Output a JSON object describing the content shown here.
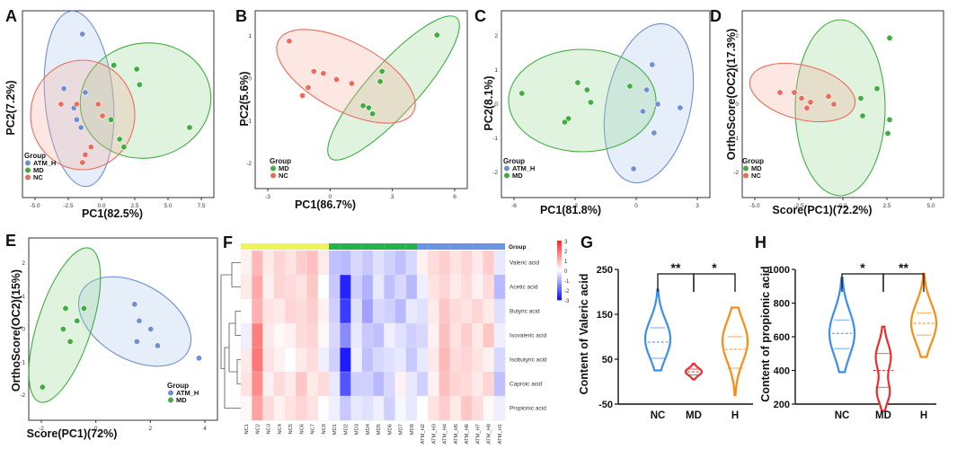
{
  "colors": {
    "ATM_H": "#6f8fd6",
    "MD": "#3fae3f",
    "NC": "#ee6a5a",
    "MD_fill": "rgba(150,215,150,0.30)",
    "NC_fill": "rgba(245,175,160,0.30)",
    "ATM_fill": "rgba(170,200,235,0.30)",
    "violin_NC": "#3b8ef0",
    "violin_MD": "#ee2b2b",
    "violin_H": "#ff8a10"
  },
  "chart_data": [
    {
      "id": "A",
      "type": "scatter",
      "panel_label": "A",
      "xlabel": "PC1(82.5%)",
      "ylabel": "PC2(7.2%)",
      "xticks": [
        "-5.0",
        "-2.5",
        "0.0",
        "2.5",
        "5.0",
        "7.5"
      ],
      "legend_title": "Group",
      "legend": [
        "ATM_H",
        "MD",
        "NC"
      ],
      "series": [
        {
          "name": "ATM_H",
          "points": [
            [
              -1.4,
              1.8
            ],
            [
              -2.7,
              0.4
            ],
            [
              -2.0,
              -0.1
            ],
            [
              -1.2,
              0.3
            ],
            [
              -1.8,
              -0.4
            ],
            [
              -1.5,
              -0.6
            ]
          ]
        },
        {
          "name": "MD",
          "points": [
            [
              0.8,
              1.0
            ],
            [
              2.4,
              0.9
            ],
            [
              2.6,
              0.5
            ],
            [
              6.1,
              -0.6
            ],
            [
              0.6,
              -0.4
            ],
            [
              1.2,
              -0.9
            ],
            [
              1.5,
              -1.1
            ]
          ]
        },
        {
          "name": "NC",
          "points": [
            [
              -2.9,
              0.0
            ],
            [
              -1.8,
              0.0
            ],
            [
              -0.3,
              0.0
            ],
            [
              0.0,
              -0.3
            ],
            [
              -0.8,
              -1.1
            ],
            [
              -1.2,
              -1.3
            ],
            [
              -1.4,
              -1.5
            ]
          ]
        }
      ]
    },
    {
      "id": "B",
      "type": "scatter",
      "panel_label": "B",
      "xlabel": "PC1(86.7%)",
      "ylabel": "PC2(5.6%)",
      "xticks": [
        "-3",
        "0",
        "3",
        "6"
      ],
      "yticks": [
        "1",
        "0",
        "-1",
        "-2"
      ],
      "legend_title": "Group",
      "legend": [
        "MD",
        "NC"
      ],
      "series": [
        {
          "name": "MD",
          "points": [
            [
              5.0,
              1.2
            ],
            [
              2.1,
              0.3
            ],
            [
              2.0,
              0.05
            ],
            [
              1.1,
              -0.55
            ],
            [
              1.4,
              -0.6
            ],
            [
              1.6,
              -0.75
            ]
          ]
        },
        {
          "name": "NC",
          "points": [
            [
              -2.8,
              1.05
            ],
            [
              -1.5,
              0.3
            ],
            [
              -1.0,
              0.25
            ],
            [
              -0.3,
              0.1
            ],
            [
              0.5,
              0.0
            ],
            [
              -1.8,
              -0.1
            ],
            [
              -2.1,
              -0.3
            ]
          ]
        }
      ]
    },
    {
      "id": "C",
      "type": "scatter",
      "panel_label": "C",
      "xlabel": "PC1(81.8%)",
      "ylabel": "PC2(8.1%)",
      "xticks": [
        "-6",
        "-3",
        "0",
        "3"
      ],
      "yticks": [
        "2",
        "1",
        "0",
        "-1",
        "-2"
      ],
      "legend_title": "Group",
      "legend": [
        "ATM_H",
        "MD"
      ],
      "series": [
        {
          "name": "ATM_H",
          "points": [
            [
              1.5,
              1.1
            ],
            [
              1.2,
              0.4
            ],
            [
              1.8,
              0.0
            ],
            [
              3.0,
              -0.1
            ],
            [
              1.0,
              -0.2
            ],
            [
              1.6,
              -0.8
            ],
            [
              0.5,
              -1.8
            ]
          ]
        },
        {
          "name": "MD",
          "points": [
            [
              -5.5,
              0.3
            ],
            [
              -2.5,
              0.6
            ],
            [
              -2.0,
              0.4
            ],
            [
              -1.8,
              0.05
            ],
            [
              -3.0,
              -0.4
            ],
            [
              -3.2,
              -0.5
            ],
            [
              0.3,
              0.5
            ]
          ]
        }
      ]
    },
    {
      "id": "D",
      "type": "scatter",
      "panel_label": "D",
      "xlabel": "Score(PC1)(72.2%)",
      "ylabel": "OrthoScore(OC2)(17.3%)",
      "xticks": [
        "-5.0",
        "-2.5",
        "0.0",
        "2.5",
        "5.0"
      ],
      "yticks": [
        "2",
        "1",
        "0",
        "-1",
        "-2"
      ],
      "legend_title": "Group",
      "legend": [
        "MD",
        "NC"
      ],
      "series": [
        {
          "name": "MD",
          "points": [
            [
              2.6,
              1.7
            ],
            [
              1.9,
              0.4
            ],
            [
              1.0,
              0.15
            ],
            [
              1.1,
              -0.3
            ],
            [
              2.6,
              -0.4
            ],
            [
              2.5,
              -0.75
            ]
          ]
        },
        {
          "name": "NC",
          "points": [
            [
              -3.5,
              0.3
            ],
            [
              -2.7,
              0.3
            ],
            [
              -2.3,
              0.15
            ],
            [
              -1.8,
              0.05
            ],
            [
              -2.0,
              -0.1
            ],
            [
              -0.8,
              0.2
            ],
            [
              -0.5,
              0.0
            ]
          ]
        }
      ]
    },
    {
      "id": "E",
      "type": "scatter",
      "panel_label": "E",
      "xlabel": "Score(PC1)(72%)",
      "ylabel": "OrthoScore(OC2)(15%)",
      "xticks": [
        "-2",
        "0",
        "2",
        "4"
      ],
      "yticks": [
        "2",
        "1",
        "0",
        "-1",
        "-2"
      ],
      "legend_title": "Group",
      "legend": [
        "ATM_H",
        "MD"
      ],
      "series": [
        {
          "name": "ATM_H",
          "points": [
            [
              1.0,
              0.6
            ],
            [
              1.2,
              0.2
            ],
            [
              1.7,
              0.0
            ],
            [
              1.1,
              -0.3
            ],
            [
              2.0,
              -0.4
            ],
            [
              3.8,
              -0.7
            ]
          ]
        },
        {
          "name": "MD",
          "points": [
            [
              -1.2,
              0.5
            ],
            [
              -2.0,
              0.5
            ],
            [
              -1.5,
              0.2
            ],
            [
              -2.1,
              0.0
            ],
            [
              -1.8,
              -0.3
            ],
            [
              -3.0,
              -1.4
            ]
          ]
        }
      ]
    },
    {
      "id": "F",
      "type": "heatmap",
      "panel_label": "F",
      "group_label": "Group",
      "columns": [
        "NC1",
        "NC2",
        "NC3",
        "NC4",
        "NC5",
        "NC6",
        "NC7",
        "NC8",
        "MD1",
        "MD2",
        "MD3",
        "MD4",
        "MD5",
        "MD6",
        "MD7",
        "MD8",
        "ATM_H2",
        "ATM_H3",
        "ATM_H4",
        "ATM_H5",
        "ATM_H6",
        "ATM_H7",
        "ATM_H8",
        "ATM_H1"
      ],
      "column_groups": [
        "NC",
        "NC",
        "NC",
        "NC",
        "NC",
        "NC",
        "NC",
        "NC",
        "MD",
        "MD",
        "MD",
        "MD",
        "MD",
        "MD",
        "MD",
        "MD",
        "ATM_H",
        "ATM_H",
        "ATM_H",
        "ATM_H",
        "ATM_H",
        "ATM_H",
        "ATM_H",
        "ATM_H"
      ],
      "rows": [
        "Valeric acid",
        "Acetic acid",
        "Butyric acid",
        "Isovaleric acid",
        "Isobutyric acid",
        "Caproic acid",
        "Propionic acid"
      ],
      "colorbar_ticks": [
        "3",
        "2",
        "1",
        "0",
        "-1",
        "-2",
        "-3"
      ],
      "values": [
        [
          0.2,
          1.0,
          0.3,
          0.6,
          0.4,
          0.7,
          0.9,
          0.3,
          -0.8,
          -0.9,
          -0.5,
          -0.7,
          -0.4,
          -0.6,
          -0.8,
          -0.5,
          0.2,
          0.5,
          0.7,
          0.4,
          0.6,
          0.3,
          0.7,
          -0.3
        ],
        [
          0.3,
          1.2,
          0.2,
          0.6,
          0.5,
          0.4,
          0.8,
          0.0,
          -0.7,
          -2.8,
          -0.6,
          -1.0,
          -0.3,
          -0.8,
          -0.5,
          -0.9,
          -0.2,
          0.4,
          0.6,
          0.3,
          0.5,
          0.2,
          0.5,
          -0.9
        ],
        [
          0.0,
          1.1,
          0.4,
          0.3,
          0.6,
          0.5,
          0.7,
          0.2,
          -0.6,
          -2.5,
          -0.4,
          -1.2,
          -0.5,
          -0.6,
          -0.9,
          -0.3,
          -0.4,
          0.3,
          0.8,
          0.5,
          0.4,
          0.6,
          0.3,
          -0.4
        ],
        [
          -0.2,
          1.8,
          0.3,
          0.1,
          0.2,
          0.5,
          0.6,
          0.1,
          -0.5,
          -1.5,
          -0.3,
          -0.7,
          -0.8,
          -0.2,
          -0.4,
          -0.6,
          -0.5,
          0.2,
          0.9,
          0.4,
          0.7,
          0.3,
          0.8,
          -0.2
        ],
        [
          0.3,
          1.9,
          0.4,
          0.2,
          0.0,
          0.3,
          0.5,
          -0.2,
          -0.6,
          -2.9,
          -0.2,
          -0.8,
          -0.5,
          -0.4,
          -0.3,
          -0.7,
          -0.3,
          0.3,
          1.0,
          0.5,
          0.6,
          0.4,
          0.2,
          -0.5
        ],
        [
          0.4,
          1.6,
          0.2,
          0.5,
          0.3,
          0.8,
          0.3,
          0.5,
          -0.3,
          -2.2,
          -0.6,
          -0.6,
          -0.9,
          -0.5,
          0.2,
          -0.3,
          -0.6,
          0.2,
          0.9,
          0.6,
          0.5,
          0.3,
          0.6,
          -0.8
        ],
        [
          0.1,
          1.3,
          0.5,
          0.2,
          0.4,
          0.6,
          0.4,
          0.0,
          -0.2,
          -0.7,
          -0.3,
          -0.4,
          -0.2,
          -0.6,
          -0.1,
          -0.3,
          0.0,
          0.4,
          0.7,
          0.3,
          0.8,
          0.5,
          0.1,
          -0.2
        ]
      ]
    },
    {
      "id": "G",
      "type": "violin",
      "panel_label": "G",
      "ylabel": "Content of Valeric acid",
      "categories": [
        "NC",
        "MD",
        "H"
      ],
      "yticks": [
        "250",
        "150",
        "50",
        "-50"
      ],
      "ylim": [
        -50,
        250
      ],
      "significance": [
        {
          "from": "NC",
          "to": "MD",
          "label": "**"
        },
        {
          "from": "MD",
          "to": "H",
          "label": "*"
        }
      ],
      "violins": [
        {
          "name": "NC",
          "min": 25,
          "max": 205,
          "median": 88,
          "q1": 52,
          "q3": 120,
          "mode": 95
        },
        {
          "name": "MD",
          "min": 5,
          "max": 40,
          "median": 22,
          "q1": 15,
          "q3": 28,
          "mode": 22
        },
        {
          "name": "H",
          "min": -30,
          "max": 165,
          "median": 72,
          "q1": 30,
          "q3": 100,
          "mode": 90
        }
      ]
    },
    {
      "id": "H",
      "type": "violin",
      "panel_label": "H",
      "ylabel": "Content of propionic acid",
      "categories": [
        "NC",
        "MD",
        "H"
      ],
      "yticks": [
        "1000",
        "800",
        "600",
        "400",
        "200"
      ],
      "ylim": [
        200,
        1000
      ],
      "significance": [
        {
          "from": "NC",
          "to": "MD",
          "label": "*"
        },
        {
          "from": "MD",
          "to": "H",
          "label": "**"
        }
      ],
      "violins": [
        {
          "name": "NC",
          "min": 390,
          "max": 950,
          "median": 620,
          "q1": 530,
          "q3": 700,
          "mode": 620
        },
        {
          "name": "MD",
          "min": 160,
          "max": 660,
          "median": 400,
          "q1": 300,
          "q3": 500,
          "mode": 440
        },
        {
          "name": "H",
          "min": 480,
          "max": 975,
          "median": 680,
          "q1": 610,
          "q3": 740,
          "mode": 680
        }
      ]
    }
  ]
}
